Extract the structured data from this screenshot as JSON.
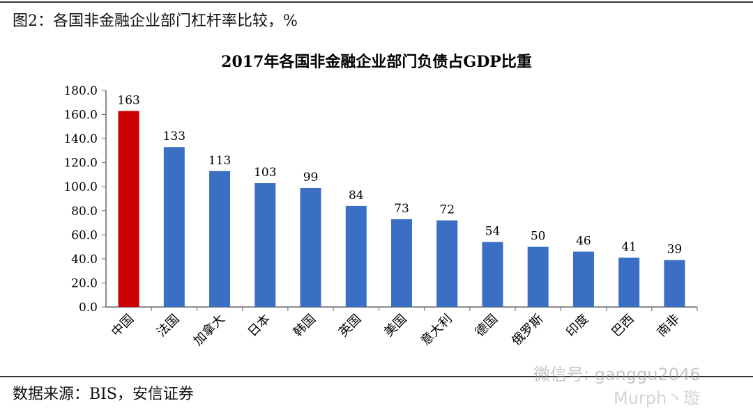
{
  "figure_title": "图2：各国非金融企业部门杠杆率比较，%",
  "source": "数据来源：BIS，安信证券",
  "watermark": [
    "微信号: ganggu2046",
    "Murph丶璇"
  ],
  "chart_data": {
    "type": "bar",
    "title": "2017年各国非金融企业部门负债占GDP比重",
    "xlabel": "",
    "ylabel": "",
    "categories": [
      "中国",
      "法国",
      "加拿大",
      "日本",
      "韩国",
      "英国",
      "美国",
      "意大利",
      "德国",
      "俄罗斯",
      "印度",
      "巴西",
      "南非"
    ],
    "values": [
      163,
      133,
      113,
      103,
      99,
      84,
      73,
      72,
      54,
      50,
      46,
      41,
      39
    ],
    "data_labels": [
      "163",
      "133",
      "113",
      "103",
      "99",
      "84",
      "73",
      "72",
      "54",
      "50",
      "46",
      "41",
      "39"
    ],
    "ylim": [
      0,
      180
    ],
    "yticks": [
      "0.0",
      "20.0",
      "40.0",
      "60.0",
      "80.0",
      "100.0",
      "120.0",
      "140.0",
      "160.0",
      "180.0"
    ],
    "grid": false,
    "legend": "none",
    "colors": {
      "highlight": "#cc0000",
      "default": "#3a6fc4"
    }
  }
}
